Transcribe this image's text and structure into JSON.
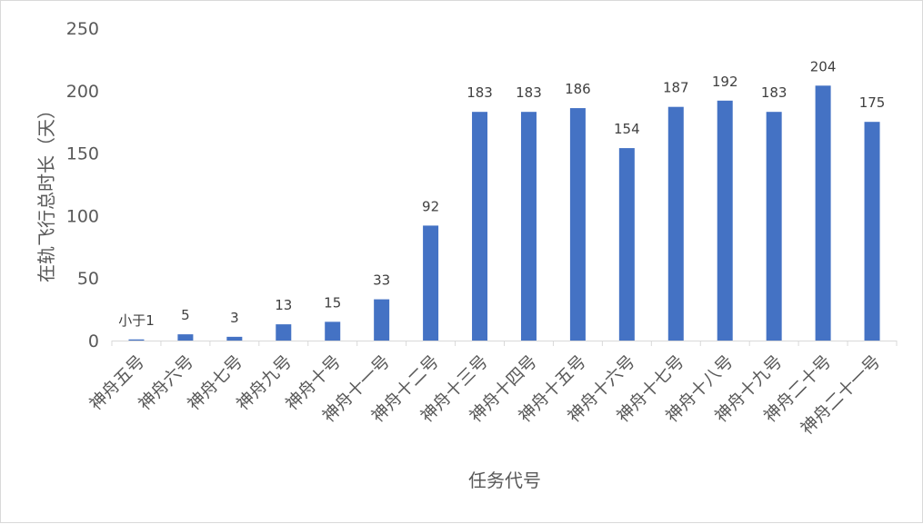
{
  "chart_data": {
    "type": "bar",
    "title": "",
    "xlabel": "任务代号",
    "ylabel": "在轨飞行总时长（天）",
    "ylim": [
      0,
      250
    ],
    "yticks": [
      0,
      50,
      100,
      150,
      200,
      250
    ],
    "grid": false,
    "legend": "none",
    "bar_color": "#4472c4",
    "categories": [
      "神舟五号",
      "神舟六号",
      "神舟七号",
      "神舟九号",
      "神舟十号",
      "神舟十一号",
      "神舟十二号",
      "神舟十三号",
      "神舟十四号",
      "神舟十五号",
      "神舟十六号",
      "神舟十七号",
      "神舟十八号",
      "神舟十九号",
      "神舟二十号",
      "神舟二十一号"
    ],
    "values": [
      0.9,
      5,
      3,
      13,
      15,
      33,
      92,
      183,
      183,
      186,
      154,
      187,
      192,
      183,
      204,
      175
    ],
    "data_labels": [
      "小于1",
      "5",
      "3",
      "13",
      "15",
      "33",
      "92",
      "183",
      "183",
      "186",
      "154",
      "187",
      "192",
      "183",
      "204",
      "175"
    ]
  }
}
